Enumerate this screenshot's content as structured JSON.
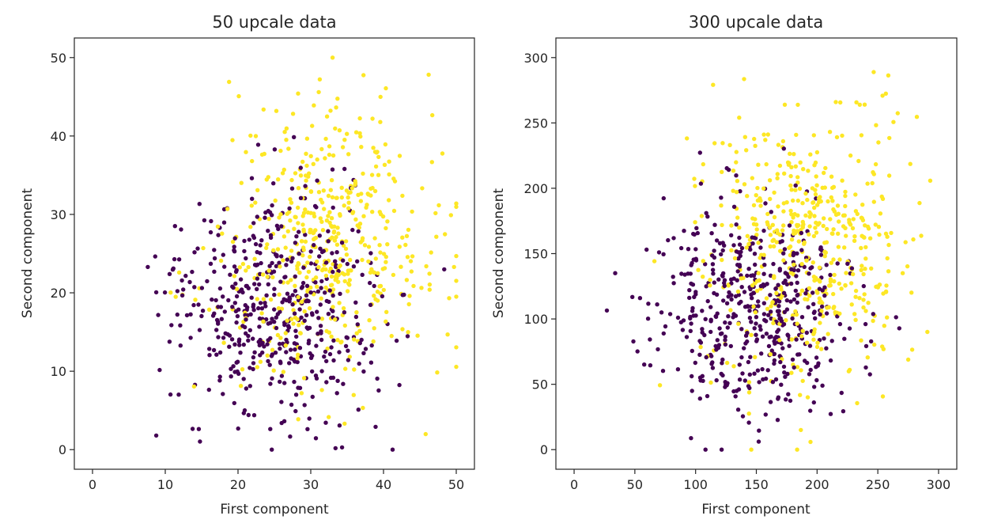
{
  "colors": {
    "class0": "#440154",
    "class1": "#fde725"
  },
  "chart_data": [
    {
      "type": "scatter",
      "title": "50 upcale data",
      "xlabel": "First component",
      "ylabel": "Second component",
      "xlim": [
        -2.5,
        52.5
      ],
      "ylim": [
        -2.5,
        52.5
      ],
      "xticks": [
        0,
        10,
        20,
        30,
        40,
        50
      ],
      "yticks": [
        0,
        10,
        20,
        30,
        40,
        50
      ],
      "grid": false,
      "legend": "none",
      "point_count_per_class": 500,
      "series": [
        {
          "class": 0,
          "center": [
            25,
            18
          ],
          "spread": [
            7,
            7
          ],
          "clip": [
            0,
            50
          ],
          "seed": 11
        },
        {
          "class": 1,
          "center": [
            32,
            26
          ],
          "spread": [
            7,
            8
          ],
          "clip": [
            0,
            50
          ],
          "seed": 23
        }
      ]
    },
    {
      "type": "scatter",
      "title": "300 upcale data",
      "xlabel": "First component",
      "ylabel": "Second component",
      "xlim": [
        -15,
        315
      ],
      "ylim": [
        -15,
        315
      ],
      "xticks": [
        0,
        50,
        100,
        150,
        200,
        250,
        300
      ],
      "yticks": [
        0,
        50,
        100,
        150,
        200,
        250,
        300
      ],
      "grid": false,
      "legend": "none",
      "point_count_per_class": 500,
      "series": [
        {
          "class": 0,
          "center": [
            150,
            108
          ],
          "spread": [
            42,
            42
          ],
          "clip": [
            0,
            300
          ],
          "seed": 37
        },
        {
          "class": 1,
          "center": [
            190,
            155
          ],
          "spread": [
            42,
            48
          ],
          "clip": [
            0,
            300
          ],
          "seed": 53
        }
      ]
    }
  ]
}
